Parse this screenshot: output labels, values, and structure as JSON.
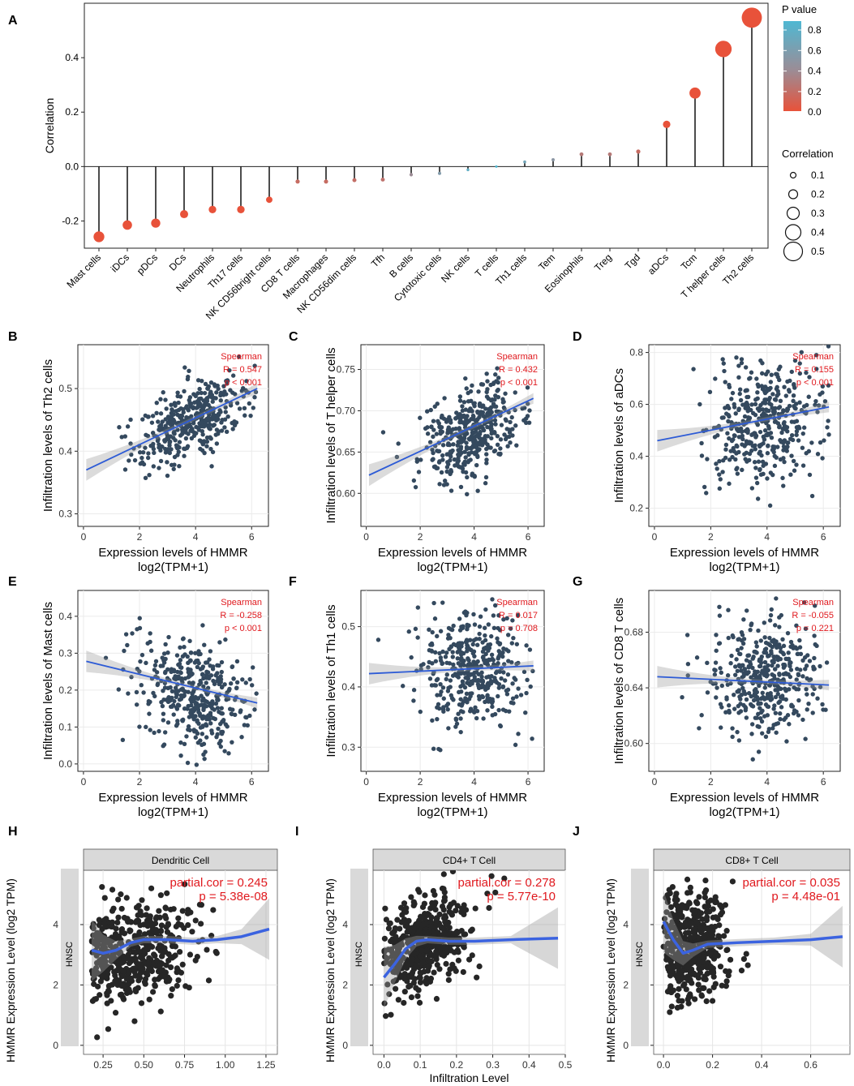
{
  "panel_letters": [
    "A",
    "B",
    "C",
    "D",
    "E",
    "F",
    "G",
    "H",
    "I",
    "J"
  ],
  "chart_data": [
    {
      "panel": "A",
      "type": "lollipop",
      "ylabel": "Correlation",
      "ylim": [
        -0.3,
        0.6
      ],
      "yticks": [
        -0.2,
        0.0,
        0.2,
        0.4
      ],
      "ytick_labels": [
        "-0.2",
        "0.0",
        "0.2",
        "0.4"
      ],
      "categories": [
        "Mast cells",
        "iDCs",
        "pDCs",
        "DCs",
        "Neutrophils",
        "Th17 cells",
        "NK CD56bright cells",
        "CD8 T cells",
        "Macrophages",
        "NK CD56dim cells",
        "Tfh",
        "B cells",
        "Cytotoxic cells",
        "NK cells",
        "T cells",
        "Th1 cells",
        "Tem",
        "Eosinophils",
        "Treg",
        "Tgd",
        "aDCs",
        "Tcm",
        "T helper cells",
        "Th2 cells"
      ],
      "values": [
        -0.258,
        -0.215,
        -0.208,
        -0.175,
        -0.158,
        -0.158,
        -0.122,
        -0.055,
        -0.055,
        -0.05,
        -0.048,
        -0.03,
        -0.025,
        -0.012,
        0.0,
        0.017,
        0.025,
        0.045,
        0.045,
        0.055,
        0.155,
        0.27,
        0.432,
        0.547
      ],
      "pvalues": [
        0.0,
        0.0,
        0.0,
        0.0,
        0.0,
        0.0,
        0.0,
        0.2,
        0.2,
        0.22,
        0.25,
        0.45,
        0.6,
        0.8,
        0.95,
        0.7,
        0.55,
        0.3,
        0.3,
        0.2,
        0.0,
        0.0,
        0.0,
        0.0
      ],
      "legend_p": {
        "title": "P value",
        "ticks": [
          "0.8",
          "0.6",
          "0.4",
          "0.2",
          "0.0"
        ],
        "colors": {
          "high": "#4fb8d3",
          "mid": "#9c8c95",
          "low": "#e8523a"
        }
      },
      "legend_size": {
        "title": "Correlation",
        "labels": [
          "0.1",
          "0.2",
          "0.3",
          "0.4",
          "0.5"
        ],
        "values": [
          0.1,
          0.2,
          0.3,
          0.4,
          0.5
        ]
      }
    },
    {
      "panel": "B",
      "type": "scatter",
      "xlabel_line1": "Expression levels of HMMR",
      "xlabel_line2": "log2(TPM+1)",
      "ylabel": "Infiltration levels of Th2 cells",
      "xlim": [
        -0.2,
        6.6
      ],
      "ylim": [
        0.28,
        0.57
      ],
      "xticks": [
        0,
        2,
        4,
        6
      ],
      "yticks": [
        0.3,
        0.4,
        0.5
      ],
      "ytick_labels": [
        "0.3",
        "0.4",
        "0.5"
      ],
      "fit": [
        0.37,
        0.5
      ],
      "stats": [
        "Spearman",
        "R = 0.547",
        "p < 0.001"
      ],
      "cloud": {
        "cx": 3.9,
        "cy": 0.45,
        "sx": 0.95,
        "sy": 0.035,
        "n": 420,
        "r": 0.547
      }
    },
    {
      "panel": "C",
      "type": "scatter",
      "xlabel_line1": "Expression levels of HMMR",
      "xlabel_line2": "log2(TPM+1)",
      "ylabel": "Infiltration levels of T helper cells",
      "xlim": [
        -0.2,
        6.6
      ],
      "ylim": [
        0.56,
        0.78
      ],
      "xticks": [
        0,
        2,
        4,
        6
      ],
      "yticks": [
        0.6,
        0.65,
        0.7,
        0.75
      ],
      "ytick_labels": [
        "0.60",
        "0.65",
        "0.70",
        "0.75"
      ],
      "fit": [
        0.622,
        0.715
      ],
      "stats": [
        "Spearman",
        "R = 0.432",
        "p < 0.001"
      ],
      "cloud": {
        "cx": 3.9,
        "cy": 0.675,
        "sx": 0.95,
        "sy": 0.028,
        "n": 420,
        "r": 0.432
      }
    },
    {
      "panel": "D",
      "type": "scatter",
      "xlabel_line1": "Expression levels of HMMR",
      "xlabel_line2": "log2(TPM+1)",
      "ylabel": "Infiltration levels of aDCs",
      "xlim": [
        -0.2,
        6.6
      ],
      "ylim": [
        0.13,
        0.83
      ],
      "xticks": [
        0,
        2,
        4,
        6
      ],
      "yticks": [
        0.2,
        0.4,
        0.6,
        0.8
      ],
      "ytick_labels": [
        "0.2",
        "0.4",
        "0.6",
        "0.8"
      ],
      "fit": [
        0.46,
        0.59
      ],
      "stats": [
        "Spearman",
        "R = 0.155",
        "p < 0.001"
      ],
      "cloud": {
        "cx": 3.9,
        "cy": 0.54,
        "sx": 0.95,
        "sy": 0.12,
        "n": 420,
        "r": 0.155
      }
    },
    {
      "panel": "E",
      "type": "scatter",
      "xlabel_line1": "Expression levels of HMMR",
      "xlabel_line2": "log2(TPM+1)",
      "ylabel": "Infiltration levels of Mast cells",
      "xlim": [
        -0.2,
        6.6
      ],
      "ylim": [
        -0.02,
        0.47
      ],
      "xticks": [
        0,
        2,
        4,
        6
      ],
      "yticks": [
        0.0,
        0.1,
        0.2,
        0.3,
        0.4
      ],
      "ytick_labels": [
        "0.0",
        "0.1",
        "0.2",
        "0.3",
        "0.4"
      ],
      "fit": [
        0.278,
        0.165
      ],
      "stats": [
        "Spearman",
        "R = -0.258",
        "p < 0.001"
      ],
      "cloud": {
        "cx": 3.9,
        "cy": 0.2,
        "sx": 0.95,
        "sy": 0.08,
        "n": 420,
        "r": -0.258
      }
    },
    {
      "panel": "F",
      "type": "scatter",
      "xlabel_line1": "Expression levels of HMMR",
      "xlabel_line2": "log2(TPM+1)",
      "ylabel": "Infiltration levels of Th1 cells",
      "xlim": [
        -0.2,
        6.6
      ],
      "ylim": [
        0.26,
        0.56
      ],
      "xticks": [
        0,
        2,
        4,
        6
      ],
      "yticks": [
        0.3,
        0.4,
        0.5
      ],
      "ytick_labels": [
        "0.3",
        "0.4",
        "0.5"
      ],
      "fit": [
        0.422,
        0.435
      ],
      "stats": [
        "Spearman",
        "R = 0.017",
        "p = 0.708"
      ],
      "cloud": {
        "cx": 3.9,
        "cy": 0.43,
        "sx": 0.95,
        "sy": 0.048,
        "n": 420,
        "r": 0.02
      }
    },
    {
      "panel": "G",
      "type": "scatter",
      "xlabel_line1": "Expression levels of HMMR",
      "xlabel_line2": "log2(TPM+1)",
      "ylabel": "Infiltration levels of CD8 T cells",
      "xlim": [
        -0.2,
        6.6
      ],
      "ylim": [
        0.58,
        0.71
      ],
      "xticks": [
        0,
        2,
        4,
        6
      ],
      "yticks": [
        0.6,
        0.64,
        0.68
      ],
      "ytick_labels": [
        "0.60",
        "0.64",
        "0.68"
      ],
      "fit": [
        0.648,
        0.642
      ],
      "stats": [
        "Spearman",
        "R = -0.055",
        "p = 0.221"
      ],
      "cloud": {
        "cx": 3.9,
        "cy": 0.645,
        "sx": 0.95,
        "sy": 0.02,
        "n": 420,
        "r": -0.05
      }
    },
    {
      "panel": "H",
      "type": "scatter",
      "strip_title": "Dendritic Cell",
      "side_label": "HNSC",
      "ylabel": "HMMR Expression Level (log2 TPM)",
      "xlabel": "",
      "xlim": [
        0.13,
        1.32
      ],
      "ylim": [
        -0.3,
        5.8
      ],
      "xticks": [
        0.25,
        0.5,
        0.75,
        1.0,
        1.25
      ],
      "xtick_labels": [
        "0.25",
        "0.50",
        "0.75",
        "1.00",
        "1.25"
      ],
      "yticks": [
        0,
        2,
        4
      ],
      "ytick_labels": [
        "0",
        "2",
        "4"
      ],
      "fit_x": [
        0.18,
        0.25,
        0.33,
        0.42,
        0.5,
        0.65,
        0.8,
        0.95,
        1.1,
        1.27
      ],
      "fit_y": [
        3.15,
        3.05,
        3.15,
        3.4,
        3.5,
        3.5,
        3.45,
        3.5,
        3.6,
        3.85
      ],
      "stats": [
        "partial.cor = 0.245",
        "p = 5.38e-08"
      ],
      "cloud": {
        "cx": 0.42,
        "cy": 3.2,
        "sx": 0.2,
        "sy": 0.85,
        "n": 460,
        "r": 0.25,
        "xmin": 0.18,
        "xmax": 1.28
      }
    },
    {
      "panel": "I",
      "type": "scatter",
      "strip_title": "CD4+ T Cell",
      "side_label": "HNSC",
      "ylabel": "HMMR Expression Level (log2 TPM)",
      "xlabel": "Infiltration Level",
      "xlim": [
        -0.03,
        0.5
      ],
      "ylim": [
        -0.3,
        5.8
      ],
      "xticks": [
        0.0,
        0.1,
        0.2,
        0.3,
        0.4,
        0.5
      ],
      "xtick_labels": [
        "0.0",
        "0.1",
        "0.2",
        "0.3",
        "0.4",
        "0.5"
      ],
      "yticks": [
        0,
        2,
        4
      ],
      "ytick_labels": [
        "0",
        "2",
        "4"
      ],
      "fit_x": [
        0.0,
        0.03,
        0.06,
        0.09,
        0.12,
        0.18,
        0.25,
        0.35,
        0.48
      ],
      "fit_y": [
        2.25,
        2.7,
        3.2,
        3.45,
        3.5,
        3.45,
        3.45,
        3.5,
        3.55
      ],
      "stats": [
        "partial.cor = 0.278",
        "p = 5.77e-10"
      ],
      "cloud": {
        "cx": 0.11,
        "cy": 3.3,
        "sx": 0.06,
        "sy": 0.8,
        "n": 460,
        "r": 0.25,
        "xmin": 0.0,
        "xmax": 0.48
      }
    },
    {
      "panel": "J",
      "type": "scatter",
      "strip_title": "CD8+ T Cell",
      "side_label": "HNSC",
      "ylabel": "HMMR Expression Level (log2 TPM)",
      "xlabel": "",
      "xlim": [
        -0.04,
        0.76
      ],
      "ylim": [
        -0.3,
        5.8
      ],
      "xticks": [
        0.0,
        0.2,
        0.4,
        0.6
      ],
      "xtick_labels": [
        "0.0",
        "0.2",
        "0.4",
        "0.6"
      ],
      "yticks": [
        0,
        2,
        4
      ],
      "ytick_labels": [
        "0",
        "2",
        "4"
      ],
      "fit_x": [
        0.0,
        0.04,
        0.08,
        0.12,
        0.18,
        0.3,
        0.45,
        0.6,
        0.73
      ],
      "fit_y": [
        4.1,
        3.5,
        3.05,
        3.15,
        3.35,
        3.4,
        3.45,
        3.5,
        3.6
      ],
      "stats": [
        "partial.cor = 0.035",
        "p = 4.48e-01"
      ],
      "cloud": {
        "cx": 0.11,
        "cy": 3.3,
        "sx": 0.08,
        "sy": 0.85,
        "n": 460,
        "r": 0.05,
        "xmin": 0.0,
        "xmax": 0.73
      }
    }
  ]
}
